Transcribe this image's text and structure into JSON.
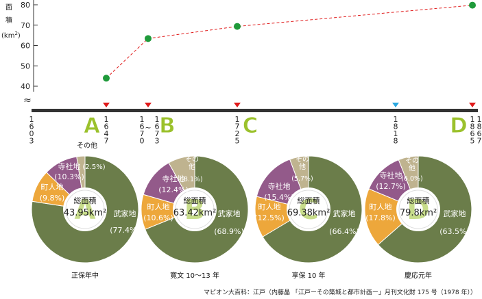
{
  "chart_data": [
    {
      "type": "line",
      "ylabel": "面積(km²)",
      "ylabel_chars": [
        "面",
        "積",
        "(km",
        "2",
        ")"
      ],
      "yticks": [
        40,
        50,
        60,
        70,
        80
      ],
      "ylim": [
        40,
        80
      ],
      "axis_break": "≈",
      "series": [
        {
          "points": [
            {
              "x": 1647,
              "y": 43.95
            },
            {
              "x": 1670,
              "y": 63.42
            },
            {
              "x": 1725,
              "y": 69.38
            },
            {
              "x": 1867,
              "y": 79.8
            }
          ]
        }
      ],
      "timeline": {
        "year_labels": [
          {
            "text": "1603",
            "color": "#222222"
          },
          {
            "text": "1647",
            "color": "#222222"
          },
          {
            "text": "1670",
            "color": "#222222"
          },
          {
            "text": "~",
            "color": "#222222"
          },
          {
            "text": "1673",
            "color": "#222222"
          },
          {
            "text": "1725",
            "color": "#222222"
          },
          {
            "text": "1818",
            "color": "#e05a1e"
          },
          {
            "text": "1865",
            "color": "#222222"
          },
          {
            "text": "1867",
            "color": "#222222"
          }
        ],
        "markers": [
          {
            "year": 1647,
            "color": "#e01a1a"
          },
          {
            "year": 1670,
            "color": "#e01a1a"
          },
          {
            "year": 1725,
            "color": "#e01a1a"
          },
          {
            "year": 1818,
            "color": "#29a8e0"
          },
          {
            "year": 1867,
            "color": "#e01a1a"
          }
        ],
        "letters": [
          "A",
          "B",
          "C",
          "D"
        ]
      },
      "colors": {
        "line": "#e01a1a",
        "point": "#1f9a3a"
      }
    },
    {
      "type": "pie",
      "categories": [
        "武家地",
        "町人地",
        "寺社地",
        "その他"
      ],
      "colors": [
        "#6b7d4a",
        "#eda73b",
        "#935a8a",
        "#bfb38f"
      ],
      "charts": [
        {
          "letter": "A",
          "title": "正保年中",
          "total_label": "総面積",
          "total": "43.95km²",
          "values": [
            77.4,
            9.8,
            10.3,
            2.5
          ],
          "labels": [
            "(77.4%)",
            "(9.8%)",
            "(10.3%)",
            "(2.5%)"
          ]
        },
        {
          "letter": "B",
          "title": "寛文 10～13 年",
          "total_label": "総面積",
          "total": "63.42km²",
          "values": [
            68.9,
            10.6,
            12.4,
            8.1
          ],
          "labels": [
            "(68.9%)",
            "(10.6%)",
            "(12.4%)",
            "(8.1%)"
          ]
        },
        {
          "letter": "C",
          "title": "享保 10 年",
          "total_label": "総面積",
          "total": "69.38km²",
          "values": [
            66.4,
            12.5,
            15.4,
            5.7
          ],
          "labels": [
            "(66.4%)",
            "(12.5%)",
            "(15.4%)",
            "(5.7%)"
          ]
        },
        {
          "letter": "D",
          "title": "慶応元年",
          "total_label": "総面積",
          "total": "79.8km²",
          "values": [
            63.5,
            17.8,
            12.7,
            6.0
          ],
          "labels": [
            "(63.5%)",
            "(17.8%)",
            "(12.7%)",
            "(6.0%)"
          ]
        }
      ]
    }
  ],
  "source_text": "マピオン大百科：江戸（内藤晶 「江戸ーその築城と都市計画ー」月刊文化財 175 号（1978 年））",
  "colors": {
    "letter": "#9bc12c",
    "axis": "#333333"
  }
}
